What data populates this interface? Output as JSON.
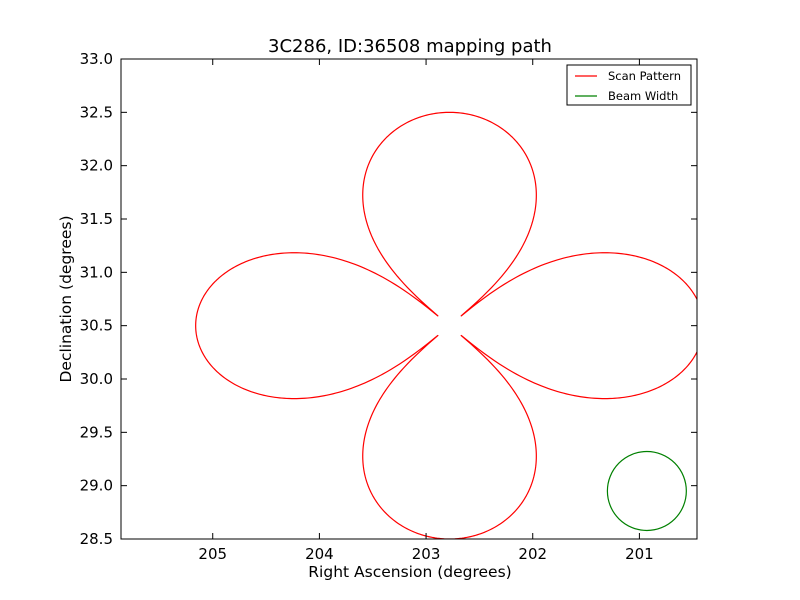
{
  "chart_data": {
    "type": "line",
    "title": "3C286, ID:36508 mapping path",
    "xlabel": "Right Ascension (degrees)",
    "ylabel": "Declination (degrees)",
    "xlim": [
      205.86,
      200.46
    ],
    "ylim": [
      28.5,
      33.0
    ],
    "x_inverted": true,
    "xticks": [
      205,
      204,
      203,
      202,
      201
    ],
    "xtick_labels": [
      "205",
      "204",
      "203",
      "202",
      "201"
    ],
    "yticks": [
      28.5,
      29.0,
      29.5,
      30.0,
      30.5,
      31.0,
      31.5,
      32.0,
      32.5,
      33.0
    ],
    "ytick_labels": [
      "28.5",
      "29.0",
      "29.5",
      "30.0",
      "30.5",
      "31.0",
      "31.5",
      "32.0",
      "32.5",
      "33.0"
    ],
    "grid": false,
    "legend_position": "top-right",
    "series": [
      {
        "name": "Scan Pattern",
        "color": "#ff0000",
        "shape": "daisy",
        "center": [
          202.78,
          30.5
        ],
        "petal_reach_x": 2.38,
        "petal_reach_y": 2.0,
        "petal_half_width_x": 0.63,
        "petal_half_width_y": 0.54,
        "petals": 4,
        "start_ra": 205.1,
        "x_clip_max_ra": 200.46
      },
      {
        "name": "Beam Width",
        "color": "#008000",
        "shape": "circle",
        "center": [
          200.93,
          28.95
        ],
        "radius_x": 0.37,
        "radius_y": 0.37
      }
    ]
  }
}
